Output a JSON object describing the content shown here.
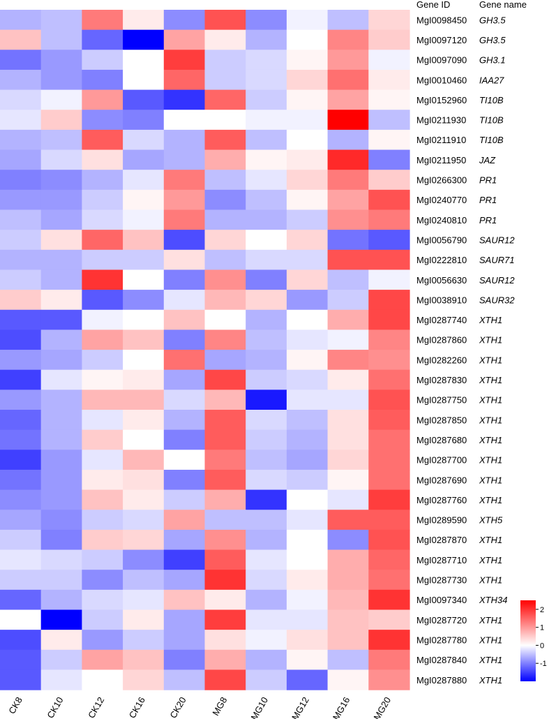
{
  "chart_data": {
    "type": "heatmap",
    "columns": [
      "CK8",
      "CK10",
      "CK12",
      "CK16",
      "CK20",
      "MG8",
      "MG10",
      "MG12",
      "MG16",
      "MG20"
    ],
    "row_header_ids": "Gene ID",
    "row_header_names": "Gene name",
    "rows": [
      {
        "id": "MgI0098450",
        "name": "GH3.5",
        "values": [
          -0.6,
          -0.5,
          1.3,
          0.2,
          -0.9,
          1.7,
          -0.9,
          -0.1,
          -0.5,
          0.4
        ]
      },
      {
        "id": "MgI0097120",
        "name": "GH3.5",
        "values": [
          0.6,
          -0.5,
          -1.2,
          -2.0,
          0.9,
          0.2,
          -0.6,
          0.0,
          1.2,
          0.5
        ]
      },
      {
        "id": "MgI0097090",
        "name": "GH3.1",
        "values": [
          -1.1,
          -0.8,
          -0.4,
          0.0,
          1.9,
          -0.4,
          -0.3,
          0.1,
          1.0,
          -0.1
        ]
      },
      {
        "id": "MgI0010460",
        "name": "IAA27",
        "values": [
          -0.6,
          -0.8,
          -1.0,
          0.0,
          1.5,
          -0.4,
          -0.3,
          0.4,
          1.4,
          0.2
        ]
      },
      {
        "id": "MgI0152960",
        "name": "TI10B",
        "values": [
          -0.3,
          -0.1,
          1.0,
          -1.3,
          -1.6,
          1.5,
          -0.4,
          0.1,
          0.9,
          0.1
        ]
      },
      {
        "id": "MgI0211930",
        "name": "TI10B",
        "values": [
          -0.2,
          0.5,
          -0.9,
          -1.0,
          0.0,
          0.0,
          -0.1,
          -0.1,
          2.5,
          -0.5
        ]
      },
      {
        "id": "MgI0211910",
        "name": "TI10B",
        "values": [
          -0.6,
          -0.5,
          1.6,
          -0.3,
          -0.6,
          1.6,
          -0.5,
          0.0,
          -0.6,
          0.1
        ]
      },
      {
        "id": "MgI0211950",
        "name": "JAZ",
        "values": [
          -0.7,
          -0.3,
          0.3,
          -0.7,
          -0.6,
          0.8,
          0.1,
          0.2,
          2.1,
          -1.0
        ]
      },
      {
        "id": "MgI0266300",
        "name": "PR1",
        "values": [
          -1.0,
          -0.9,
          -0.6,
          -0.2,
          1.3,
          -0.5,
          -0.2,
          0.4,
          1.3,
          0.5
        ]
      },
      {
        "id": "MgI0240770",
        "name": "PR1",
        "values": [
          -0.8,
          -0.8,
          -0.4,
          0.1,
          1.0,
          -0.9,
          -0.5,
          0.1,
          0.9,
          1.7
        ]
      },
      {
        "id": "MgI0240810",
        "name": "PR1",
        "values": [
          -0.5,
          -0.7,
          -0.3,
          -0.1,
          1.3,
          -0.6,
          -0.6,
          -0.4,
          1.1,
          1.3
        ]
      },
      {
        "id": "MgI0056790",
        "name": "SAUR12",
        "values": [
          -0.4,
          0.3,
          1.5,
          0.6,
          -1.4,
          0.4,
          0.0,
          0.4,
          -1.1,
          -1.3
        ]
      },
      {
        "id": "MgI0222810",
        "name": "SAUR71",
        "values": [
          -0.6,
          -0.6,
          -0.4,
          -0.4,
          0.3,
          -0.5,
          -0.3,
          -0.3,
          1.7,
          1.7
        ]
      },
      {
        "id": "MgI0056630",
        "name": "SAUR12",
        "values": [
          -0.4,
          -0.6,
          2.0,
          0.0,
          -1.0,
          1.1,
          -1.0,
          0.4,
          -0.5,
          -0.1
        ]
      },
      {
        "id": "MgI0038910",
        "name": "SAUR32",
        "values": [
          0.5,
          0.2,
          -1.3,
          -0.9,
          -0.2,
          0.7,
          0.4,
          -0.8,
          -0.4,
          1.8
        ]
      },
      {
        "id": "MgI0287740",
        "name": "XTH1",
        "values": [
          -1.3,
          -1.3,
          -0.1,
          0.0,
          0.6,
          0.0,
          -0.6,
          0.0,
          0.8,
          1.8
        ]
      },
      {
        "id": "MgI0287860",
        "name": "XTH1",
        "values": [
          -1.4,
          -0.6,
          0.9,
          0.6,
          -1.0,
          1.2,
          -0.5,
          -0.2,
          -0.1,
          1.2
        ]
      },
      {
        "id": "MgI0282260",
        "name": "XTH1",
        "values": [
          -0.8,
          -0.7,
          -0.4,
          0.0,
          1.4,
          -0.7,
          -0.6,
          0.1,
          1.2,
          1.1
        ]
      },
      {
        "id": "MgI0287830",
        "name": "XTH1",
        "values": [
          -1.5,
          -0.2,
          0.1,
          0.2,
          -0.7,
          1.8,
          -0.4,
          -0.3,
          0.2,
          1.4
        ]
      },
      {
        "id": "MgI0287750",
        "name": "XTH1",
        "values": [
          -0.8,
          -0.6,
          0.7,
          0.7,
          -0.3,
          0.7,
          -1.8,
          -0.2,
          -0.2,
          1.7
        ]
      },
      {
        "id": "MgI0287850",
        "name": "XTH1",
        "values": [
          -1.2,
          -0.6,
          -0.2,
          0.2,
          -0.6,
          1.6,
          -0.3,
          -0.5,
          0.3,
          1.6
        ]
      },
      {
        "id": "MgI0287680",
        "name": "XTH1",
        "values": [
          -1.1,
          -0.6,
          0.5,
          0.0,
          -1.0,
          1.6,
          -0.4,
          -0.6,
          0.3,
          1.4
        ]
      },
      {
        "id": "MgI0287700",
        "name": "XTH1",
        "values": [
          -1.5,
          -0.8,
          -0.2,
          0.7,
          0.0,
          1.3,
          -0.5,
          -0.7,
          0.4,
          1.4
        ]
      },
      {
        "id": "MgI0287690",
        "name": "XTH1",
        "values": [
          -1.1,
          -0.8,
          0.2,
          0.3,
          -1.0,
          1.6,
          -0.3,
          -0.4,
          0.1,
          1.4
        ]
      },
      {
        "id": "MgI0287760",
        "name": "XTH1",
        "values": [
          -0.9,
          -0.8,
          0.6,
          0.2,
          -0.4,
          0.8,
          -1.6,
          0.0,
          -0.2,
          1.9
        ]
      },
      {
        "id": "MgI0289590",
        "name": "XTH5",
        "values": [
          -0.7,
          -0.9,
          -0.4,
          -0.3,
          0.9,
          -0.5,
          -0.5,
          -0.2,
          1.6,
          1.6
        ]
      },
      {
        "id": "MgI0287870",
        "name": "XTH1",
        "values": [
          -0.4,
          -1.0,
          0.5,
          0.4,
          -0.7,
          1.1,
          -0.6,
          0.0,
          -0.9,
          1.7
        ]
      },
      {
        "id": "MgI0287710",
        "name": "XTH1",
        "values": [
          -0.2,
          -0.3,
          -0.4,
          -0.9,
          -1.5,
          1.6,
          -0.2,
          0.0,
          0.8,
          1.5
        ]
      },
      {
        "id": "MgI0287730",
        "name": "XTH1",
        "values": [
          -0.4,
          -0.4,
          -0.9,
          -0.5,
          -0.7,
          2.0,
          -0.3,
          0.2,
          0.8,
          1.4
        ]
      },
      {
        "id": "MgI0097340",
        "name": "XTH34",
        "values": [
          -1.2,
          -0.6,
          -0.3,
          -0.2,
          0.6,
          0.2,
          -0.6,
          -0.1,
          0.7,
          2.0
        ]
      },
      {
        "id": "MgI0287720",
        "name": "XTH1",
        "values": [
          0.0,
          -2.0,
          -0.4,
          0.2,
          -0.7,
          1.9,
          -0.2,
          -0.2,
          0.6,
          0.5
        ]
      },
      {
        "id": "MgI0287780",
        "name": "XTH1",
        "values": [
          -1.4,
          0.2,
          -0.8,
          -0.4,
          -0.7,
          0.3,
          -0.1,
          0.3,
          0.6,
          2.0
        ]
      },
      {
        "id": "MgI0287840",
        "name": "XTH1",
        "values": [
          -1.3,
          -0.4,
          0.9,
          0.6,
          -1.0,
          0.8,
          -0.6,
          0.1,
          -0.5,
          1.3
        ]
      },
      {
        "id": "MgI0287880",
        "name": "XTH1",
        "values": [
          -1.3,
          -0.2,
          0.0,
          0.4,
          -0.5,
          1.8,
          -0.4,
          -1.2,
          0.1,
          1.1
        ]
      }
    ],
    "colorbar": {
      "ticks": [
        -1,
        0,
        1,
        2
      ],
      "range": [
        -2,
        2.5
      ],
      "colors": {
        "low": "#0000ff",
        "mid": "#ffffff",
        "high": "#ff0000"
      }
    }
  }
}
